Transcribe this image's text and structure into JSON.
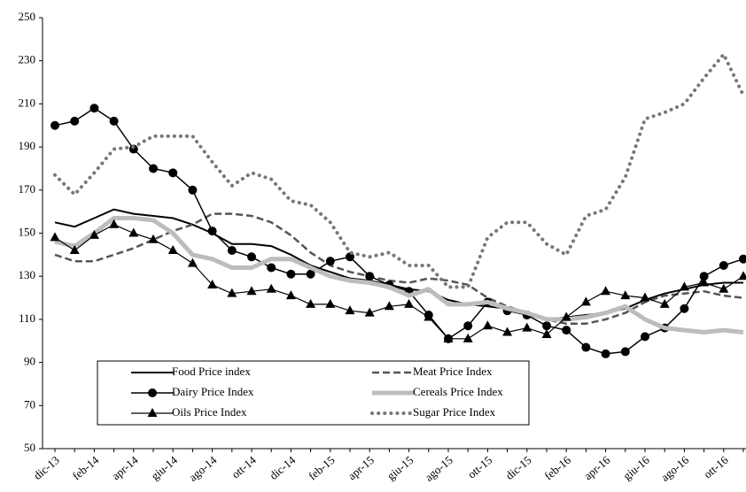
{
  "chart_data": {
    "type": "line",
    "categories": [
      "dic-13",
      null,
      "feb-14",
      null,
      "apr-14",
      null,
      "giu-14",
      null,
      "ago-14",
      null,
      "ott-14",
      null,
      "dic-14",
      null,
      "feb-15",
      null,
      "apr-15",
      null,
      "giu-15",
      null,
      "ago-15",
      null,
      "ott-15",
      null,
      "dic-15",
      null,
      "feb-16",
      null,
      "apr-16",
      null,
      "giu-16",
      null,
      "ago-16",
      null,
      "ott-16",
      null
    ],
    "ylim": [
      50,
      250
    ],
    "yticks": [
      50,
      70,
      90,
      110,
      130,
      150,
      170,
      190,
      210,
      230,
      250
    ],
    "series": [
      {
        "name": "Food Price index",
        "color": "#000000",
        "width": 2,
        "dash": "solid",
        "marker": "none",
        "values": [
          155,
          153,
          157,
          161,
          159,
          158,
          157,
          154,
          150,
          145,
          145,
          144,
          140,
          135,
          132,
          129,
          128,
          126,
          124,
          123,
          119,
          117,
          116,
          115,
          112,
          110,
          111,
          112,
          113,
          115,
          119,
          122,
          124,
          126,
          127,
          127
        ]
      },
      {
        "name": "Meat Price Index",
        "color": "#555555",
        "width": 2.5,
        "dash": "dashed",
        "marker": "none",
        "values": [
          140,
          137,
          137,
          140,
          143,
          147,
          151,
          154,
          159,
          159,
          158,
          155,
          149,
          141,
          135,
          132,
          130,
          128,
          127,
          129,
          128,
          126,
          120,
          116,
          113,
          110,
          108,
          108,
          110,
          113,
          118,
          121,
          122,
          123,
          121,
          120
        ]
      },
      {
        "name": "Dairy Price Index",
        "color": "#000000",
        "width": 1.5,
        "dash": "solid",
        "marker": "circle",
        "values": [
          200,
          202,
          208,
          202,
          189,
          180,
          178,
          170,
          151,
          142,
          139,
          134,
          131,
          131,
          137,
          139,
          130,
          126,
          123,
          112,
          101,
          107,
          118,
          114,
          112,
          107,
          105,
          97,
          94,
          95,
          102,
          106,
          115,
          130,
          135,
          138
        ]
      },
      {
        "name": "Cereals Price Index",
        "color": "#bdbdbd",
        "width": 5,
        "dash": "solid",
        "marker": "none",
        "values": [
          146,
          144,
          150,
          157,
          157,
          156,
          150,
          140,
          138,
          134,
          134,
          138,
          138,
          134,
          130,
          128,
          127,
          125,
          121,
          124,
          117,
          117,
          118,
          115,
          113,
          110,
          110,
          111,
          113,
          116,
          110,
          106,
          105,
          104,
          105,
          104
        ]
      },
      {
        "name": "Oils Price Index",
        "color": "#000000",
        "width": 1.2,
        "dash": "solid",
        "marker": "triangle",
        "values": [
          148,
          142,
          149,
          154,
          150,
          147,
          142,
          136,
          126,
          122,
          123,
          124,
          121,
          117,
          117,
          114,
          113,
          116,
          117,
          111,
          101,
          101,
          107,
          104,
          106,
          103,
          111,
          118,
          123,
          121,
          120,
          117,
          125,
          127,
          124,
          130
        ]
      },
      {
        "name": "Sugar Price Index",
        "color": "#777777",
        "width": 4,
        "dash": "dotted",
        "marker": "none",
        "values": [
          177,
          168,
          178,
          189,
          190,
          195,
          195,
          195,
          183,
          172,
          178,
          175,
          165,
          163,
          155,
          141,
          139,
          141,
          135,
          135,
          125,
          125,
          148,
          155,
          155,
          145,
          140,
          158,
          161,
          176,
          203,
          206,
          210,
          222,
          233,
          214
        ]
      }
    ],
    "legend": "bottom-left"
  }
}
